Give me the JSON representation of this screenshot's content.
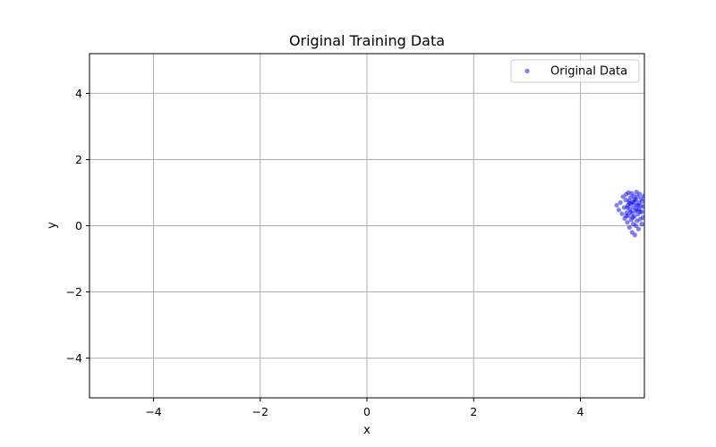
{
  "chart_data": {
    "type": "scatter",
    "title": "Original Training Data",
    "xlabel": "x",
    "ylabel": "y",
    "xlim": [
      -5.2,
      5.2
    ],
    "ylim": [
      -5.2,
      5.2
    ],
    "xticks": [
      -4,
      -2,
      0,
      2,
      4
    ],
    "yticks": [
      -4,
      -2,
      0,
      2,
      4
    ],
    "xtick_labels": [
      "−4",
      "−2",
      "0",
      "2",
      "4"
    ],
    "ytick_labels": [
      "−4",
      "−2",
      "0",
      "2",
      "4"
    ],
    "grid": true,
    "legend_position": "top-right",
    "series": [
      {
        "name": "Original Data",
        "color": "#0000ff",
        "points": [
          [
            4.68,
            0.62
          ],
          [
            4.72,
            0.48
          ],
          [
            4.75,
            0.7
          ],
          [
            4.78,
            0.36
          ],
          [
            4.8,
            0.88
          ],
          [
            4.82,
            0.55
          ],
          [
            4.83,
            0.22
          ],
          [
            4.85,
            0.78
          ],
          [
            4.86,
            0.95
          ],
          [
            4.87,
            0.4
          ],
          [
            4.88,
            0.1
          ],
          [
            4.89,
            0.62
          ],
          [
            4.9,
            0.3
          ],
          [
            4.9,
            1.0
          ],
          [
            4.91,
            0.75
          ],
          [
            4.92,
            -0.05
          ],
          [
            4.93,
            0.5
          ],
          [
            4.94,
            0.85
          ],
          [
            4.95,
            0.18
          ],
          [
            4.95,
            0.65
          ],
          [
            4.96,
            0.98
          ],
          [
            4.97,
            0.38
          ],
          [
            4.97,
            -0.2
          ],
          [
            4.98,
            0.72
          ],
          [
            4.99,
            0.05
          ],
          [
            5.0,
            0.55
          ],
          [
            5.0,
            0.9
          ],
          [
            5.01,
            0.28
          ],
          [
            5.02,
            -0.28
          ],
          [
            5.02,
            0.8
          ],
          [
            5.03,
            0.45
          ],
          [
            5.04,
            0.0
          ],
          [
            5.05,
            1.02
          ],
          [
            5.05,
            0.62
          ],
          [
            5.06,
            0.15
          ],
          [
            5.07,
            0.88
          ],
          [
            5.08,
            0.35
          ],
          [
            5.09,
            -0.1
          ],
          [
            5.1,
            0.7
          ],
          [
            5.1,
            0.5
          ],
          [
            5.11,
            0.96
          ],
          [
            5.12,
            0.2
          ],
          [
            5.13,
            0.6
          ],
          [
            5.14,
            0.82
          ],
          [
            5.15,
            0.05
          ],
          [
            5.15,
            0.42
          ],
          [
            5.16,
            0.74
          ],
          [
            5.17,
            0.25
          ],
          [
            5.18,
            0.58
          ],
          [
            5.19,
            0.9
          ],
          [
            4.88,
            0.55
          ],
          [
            4.94,
            0.42
          ],
          [
            5.0,
            0.7
          ],
          [
            5.06,
            0.48
          ],
          [
            4.92,
            0.68
          ],
          [
            4.98,
            0.25
          ],
          [
            5.04,
            0.78
          ],
          [
            5.12,
            0.42
          ],
          [
            4.86,
            0.3
          ],
          [
            5.08,
            0.62
          ]
        ]
      }
    ]
  }
}
